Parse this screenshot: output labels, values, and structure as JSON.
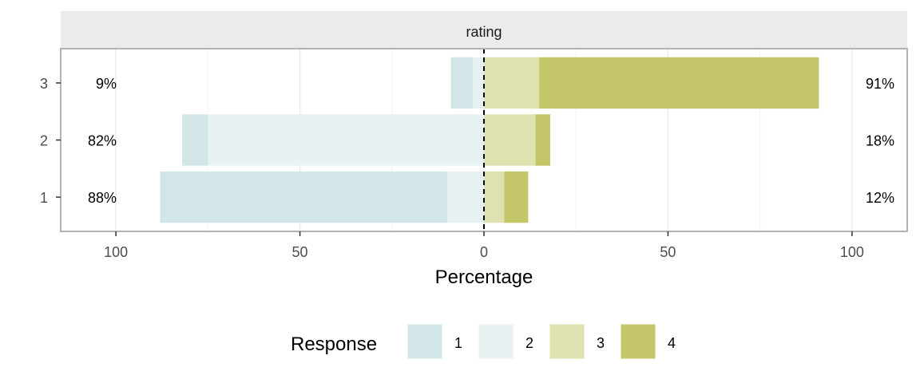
{
  "chart_data": {
    "type": "bar",
    "orientation": "horizontal-diverging",
    "facet_label": "rating",
    "categories": [
      "1",
      "2",
      "3"
    ],
    "series": [
      {
        "name": "1",
        "values": [
          78,
          7,
          6
        ],
        "color": "#d2e6e8"
      },
      {
        "name": "2",
        "values": [
          10,
          75,
          3
        ],
        "color": "#e8f2f2"
      },
      {
        "name": "3",
        "values": [
          5.5,
          14,
          15
        ],
        "color": "#e0e1b0"
      },
      {
        "name": "4",
        "values": [
          6.5,
          4,
          76
        ],
        "color": "#c4c66a"
      }
    ],
    "negative_series": [
      "1",
      "2"
    ],
    "positive_series": [
      "3",
      "4"
    ],
    "left_percent_labels": [
      "88%",
      "82%",
      "9%"
    ],
    "right_percent_labels": [
      "12%",
      "18%",
      "91%"
    ],
    "xlim": [
      -115,
      115
    ],
    "x_ticks": [
      -100,
      -50,
      0,
      50,
      100
    ],
    "x_tick_labels": [
      "100",
      "50",
      "0",
      "50",
      "100"
    ],
    "xlabel": "Percentage",
    "legend_title": "Response",
    "legend_position": "bottom",
    "grid": true
  }
}
